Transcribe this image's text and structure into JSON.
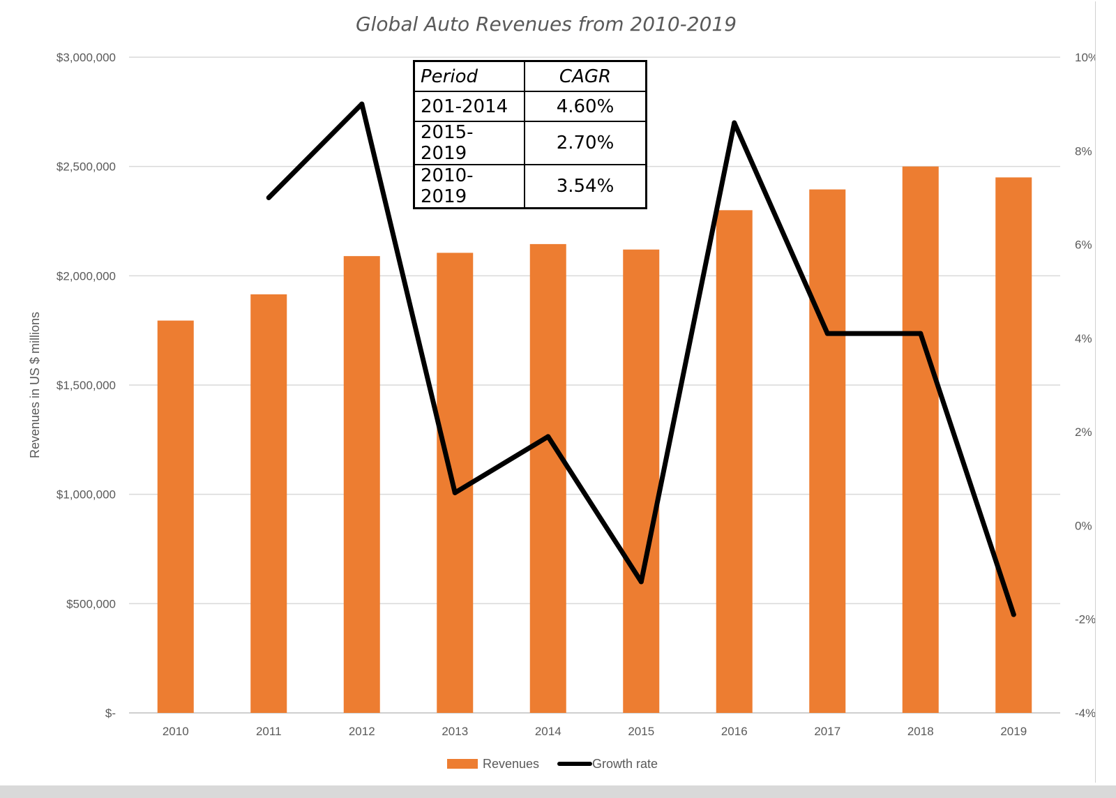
{
  "chart_data": {
    "type": "bar",
    "title": "Global Auto Revenues from 2010-2019",
    "xlabel": "",
    "ylabel": "Revenues in US $ millions",
    "categories": [
      "2010",
      "2011",
      "2012",
      "2013",
      "2014",
      "2015",
      "2016",
      "2017",
      "2018",
      "2019"
    ],
    "y_ticks": [
      0,
      500000,
      1000000,
      1500000,
      2000000,
      2500000,
      3000000
    ],
    "y_tick_labels": [
      "$-",
      "$500,000",
      "$1,000,000",
      "$1,500,000",
      "$2,000,000",
      "$2,500,000",
      "$3,000,000"
    ],
    "ylim": [
      0,
      3000000
    ],
    "y2_ticks": [
      -4,
      -2,
      0,
      2,
      4,
      6,
      8,
      10
    ],
    "y2_tick_labels": [
      "-4%",
      "-2%",
      "0%",
      "2%",
      "4%",
      "6%",
      "8%",
      "10%"
    ],
    "y2lim": [
      -4,
      10
    ],
    "grid": true,
    "legend_position": "bottom-center",
    "series": [
      {
        "name": "Revenues",
        "type": "bar",
        "axis": "left",
        "color": "#ED7D31",
        "values": [
          1795000,
          1915000,
          2090000,
          2105000,
          2145000,
          2120000,
          2300000,
          2395000,
          2500000,
          2450000
        ]
      },
      {
        "name": "Growth rate",
        "type": "line",
        "axis": "right",
        "color": "#000000",
        "values": [
          null,
          7.0,
          9.0,
          0.7,
          1.9,
          -1.2,
          8.6,
          4.1,
          4.1,
          -1.9
        ]
      }
    ]
  },
  "cagr_table": {
    "headers": [
      "Period",
      "CAGR"
    ],
    "rows": [
      [
        "201-2014",
        "4.60%"
      ],
      [
        "2015-2019",
        "2.70%"
      ],
      [
        "2010-2019",
        "3.54%"
      ]
    ]
  }
}
